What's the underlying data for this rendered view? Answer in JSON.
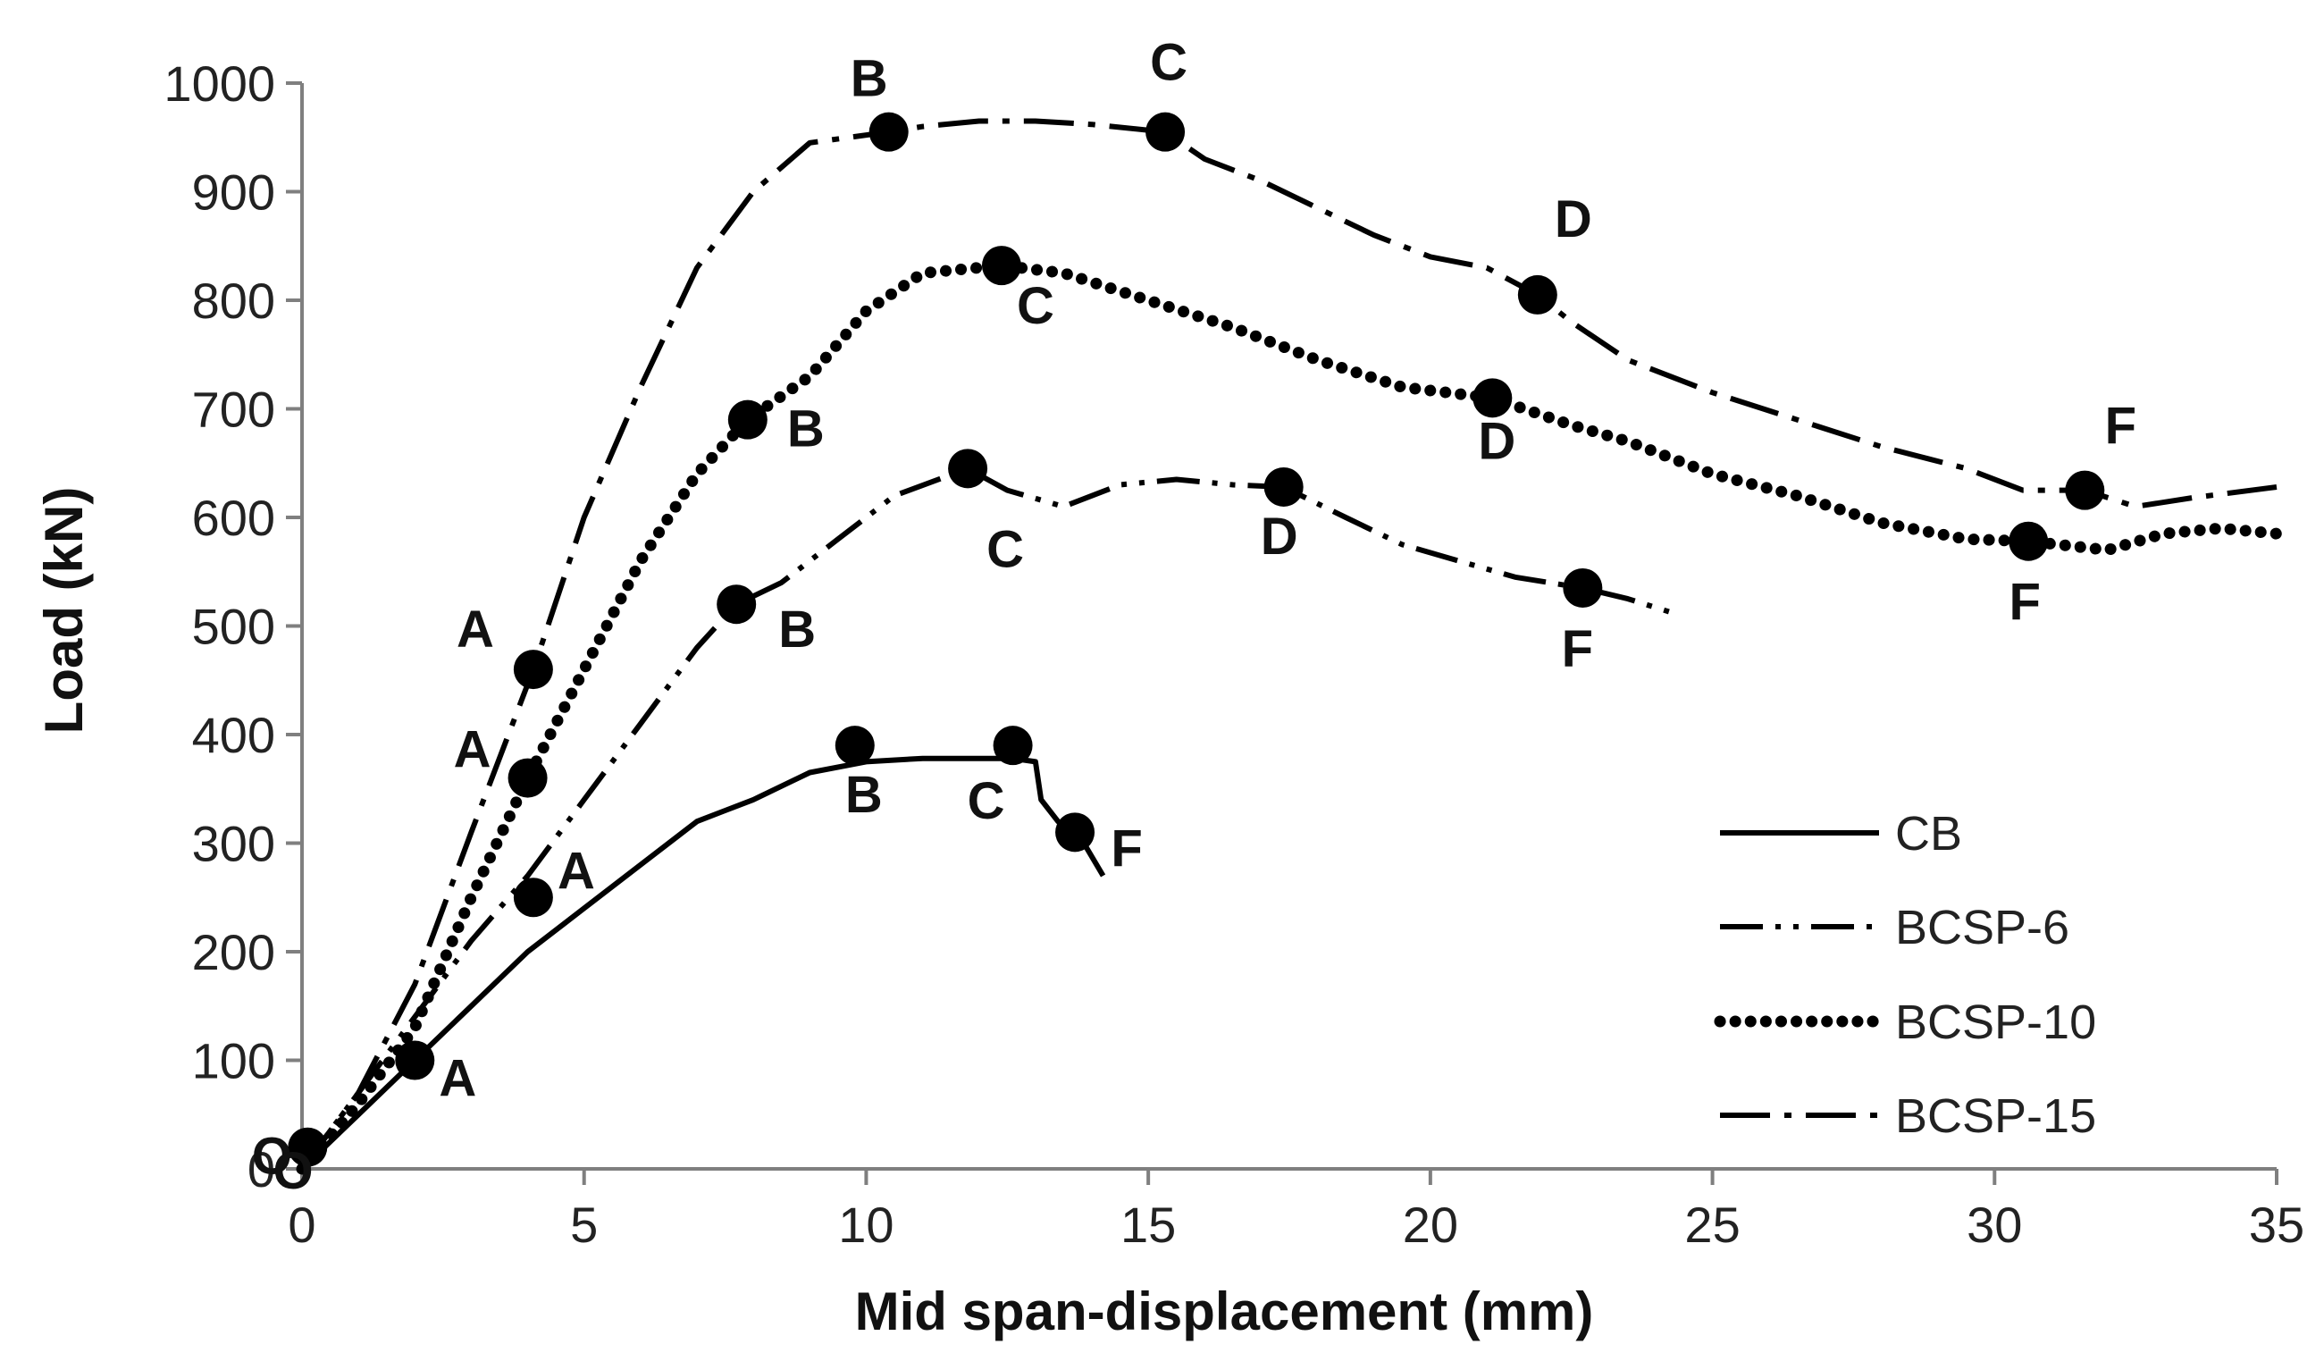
{
  "chart_data": {
    "type": "line",
    "title": "",
    "xlabel": "Mid span-displacement (mm)",
    "ylabel": "Load (kN)",
    "xlim": [
      0,
      35
    ],
    "ylim": [
      0,
      1000
    ],
    "xticks": [
      0,
      5,
      10,
      15,
      20,
      25,
      30,
      35
    ],
    "yticks": [
      0,
      100,
      200,
      300,
      400,
      500,
      600,
      700,
      800,
      900,
      1000
    ],
    "grid": false,
    "legend_position": "bottom-right",
    "series": [
      {
        "name": "CB",
        "dash": "solid",
        "x": [
          0,
          1,
          2,
          3,
          4,
          5,
          6,
          7,
          7.5,
          8,
          9,
          10,
          11,
          12,
          12.6,
          13,
          13.1,
          13.4,
          13.8,
          14.2
        ],
        "y": [
          0,
          50,
          100,
          150,
          200,
          240,
          280,
          320,
          330,
          340,
          365,
          375,
          378,
          378,
          378,
          375,
          340,
          320,
          305,
          270
        ],
        "points": [
          {
            "x": 0.1,
            "y": 20,
            "label": "O"
          },
          {
            "x": 2,
            "y": 100,
            "label": "A"
          },
          {
            "x": 9.8,
            "y": 390,
            "label": "B"
          },
          {
            "x": 12.6,
            "y": 390,
            "label": "C"
          },
          {
            "x": 13.7,
            "y": 310,
            "label": "F"
          }
        ]
      },
      {
        "name": "BCSP-6",
        "dash": "dash-dot-dot",
        "x": [
          0,
          1,
          2,
          3,
          4,
          5,
          6,
          7,
          7.7,
          8.5,
          9.5,
          10.5,
          11.8,
          12.5,
          13.5,
          14.5,
          15.5,
          16.5,
          17.4,
          18.5,
          19.5,
          20.5,
          21.5,
          22.7,
          23.5,
          24.3
        ],
        "y": [
          0,
          70,
          140,
          210,
          270,
          340,
          410,
          480,
          520,
          540,
          580,
          620,
          645,
          625,
          610,
          630,
          635,
          630,
          628,
          600,
          575,
          560,
          545,
          535,
          525,
          512
        ],
        "points": [
          {
            "x": 4.1,
            "y": 250,
            "label": "A"
          },
          {
            "x": 7.7,
            "y": 520,
            "label": "B"
          },
          {
            "x": 11.8,
            "y": 645,
            "label": "C"
          },
          {
            "x": 17.4,
            "y": 628,
            "label": "D"
          },
          {
            "x": 22.7,
            "y": 535,
            "label": "F"
          }
        ]
      },
      {
        "name": "BCSP-10",
        "dash": "dotted",
        "x": [
          0,
          1,
          2,
          3,
          4,
          5,
          6,
          7,
          7.9,
          9,
          10,
          11,
          12.4,
          13.5,
          15,
          16.5,
          18,
          19.5,
          21.1,
          22.5,
          23.5,
          25,
          26.5,
          28,
          29.5,
          30.6,
          32,
          33,
          34,
          35
        ],
        "y": [
          0,
          60,
          130,
          250,
          360,
          460,
          560,
          640,
          690,
          730,
          790,
          825,
          832,
          825,
          800,
          775,
          745,
          720,
          710,
          685,
          670,
          640,
          620,
          595,
          580,
          578,
          570,
          585,
          590,
          585
        ],
        "points": [
          {
            "x": 4,
            "y": 360,
            "label": "A"
          },
          {
            "x": 7.9,
            "y": 690,
            "label": "B"
          },
          {
            "x": 12.4,
            "y": 832,
            "label": "C"
          },
          {
            "x": 21.1,
            "y": 710,
            "label": "D"
          },
          {
            "x": 30.6,
            "y": 578,
            "label": "F"
          }
        ]
      },
      {
        "name": "BCSP-15",
        "dash": "dash-dot",
        "x": [
          0,
          1,
          2,
          3,
          4.1,
          5,
          6,
          7,
          8,
          9,
          10.4,
          11,
          12,
          13,
          14,
          15.3,
          16,
          17,
          18,
          19,
          20,
          21,
          21.9,
          22.5,
          23.5,
          25,
          26.5,
          28,
          29.5,
          30.5,
          31.6,
          32.5,
          33.5,
          35
        ],
        "y": [
          0,
          70,
          170,
          310,
          460,
          600,
          720,
          830,
          900,
          945,
          955,
          960,
          965,
          965,
          962,
          955,
          930,
          910,
          885,
          860,
          840,
          830,
          805,
          780,
          745,
          715,
          690,
          665,
          645,
          625,
          625,
          610,
          618,
          628
        ],
        "points": [
          {
            "x": 4.1,
            "y": 460,
            "label": "A"
          },
          {
            "x": 10.4,
            "y": 955,
            "label": "B"
          },
          {
            "x": 15.3,
            "y": 955,
            "label": "C"
          },
          {
            "x": 21.9,
            "y": 805,
            "label": "D"
          },
          {
            "x": 31.6,
            "y": 625,
            "label": "F"
          }
        ]
      }
    ],
    "annotations": [
      "O",
      "O",
      "A",
      "B",
      "C",
      "D",
      "F",
      "A",
      "B",
      "C",
      "D",
      "F",
      "A",
      "B",
      "C",
      "D",
      "F",
      "A",
      "B",
      "C",
      "F"
    ]
  }
}
